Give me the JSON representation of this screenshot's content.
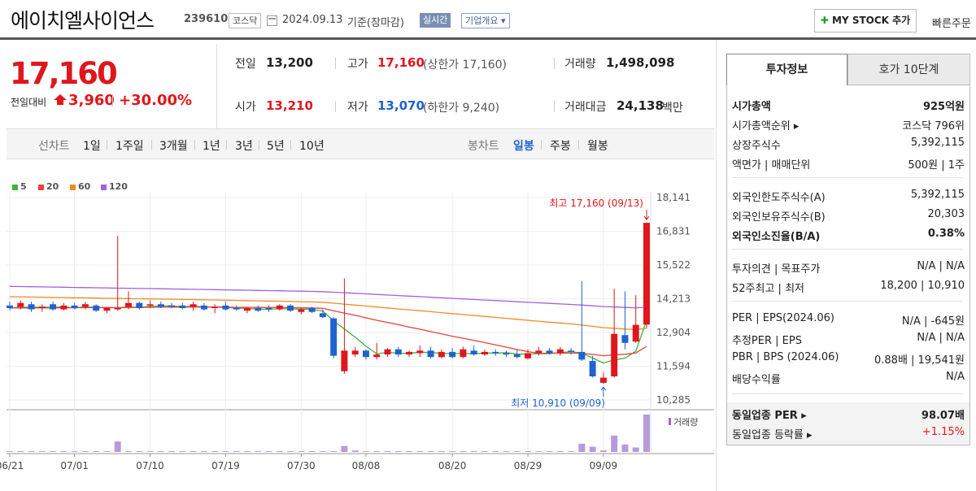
{
  "header": {
    "company_name": "에이치엘사이언스",
    "stock_code": "239610",
    "market": "코스닥",
    "date": "2024.09.13",
    "basis": "기준(장마감)",
    "realtime_label": "실시간",
    "company_info_label": "기업개요 ▾",
    "mystock_label": "MY STOCK 추가",
    "quick_order_label": "빠른주문"
  },
  "price": {
    "current": "17,160",
    "change_label": "전일대비",
    "change_amount": "3,960",
    "change_rate": "+30.00%"
  },
  "quote": {
    "prev_label": "전일",
    "prev_value": "13,200",
    "open_label": "시가",
    "open_value": "13,210",
    "high_label": "고가",
    "high_value": "17,160",
    "upper_limit": "(상한가 17,160)",
    "low_label": "저가",
    "low_value": "13,070",
    "lower_limit": "(하한가 9,240)",
    "volume_label": "거래량",
    "volume_value": "1,498,098",
    "amount_label": "거래대금",
    "amount_value": "24,138",
    "amount_unit": "백만"
  },
  "period_bar": {
    "line_label": "선차트",
    "line_periods": [
      "1일",
      "1주일",
      "3개월",
      "1년",
      "3년",
      "5년",
      "10년"
    ],
    "candle_label": "봉차트",
    "candle_periods": [
      "일봉",
      "주봉",
      "월봉"
    ],
    "active_candle": "일봉"
  },
  "chart_data": {
    "type": "candlestick",
    "legend": [
      {
        "name": "5",
        "color": "#3cb43c"
      },
      {
        "name": "20",
        "color": "#e84040"
      },
      {
        "name": "60",
        "color": "#f08a24"
      },
      {
        "name": "120",
        "color": "#a25ee0"
      }
    ],
    "y_ticks": [
      "18,141",
      "16,831",
      "15,522",
      "14,213",
      "12,904",
      "11,594",
      "10,285"
    ],
    "ylim": [
      10285,
      18141
    ],
    "x_ticks": [
      "06/21",
      "07/01",
      "07/10",
      "07/19",
      "07/30",
      "08/08",
      "08/20",
      "08/29",
      "09/09"
    ],
    "x_tick_index": [
      0,
      6,
      13,
      20,
      27,
      33,
      41,
      48,
      55
    ],
    "max_label": "최고 17,160 (09/13)",
    "min_label": "최저 10,910 (09/09)",
    "volume_label": "거래량",
    "colors": {
      "up": "#e0161d",
      "down": "#1e63d1"
    },
    "candles": [
      {
        "o": 13950,
        "h": 14100,
        "l": 13750,
        "c": 13850
      },
      {
        "o": 13900,
        "h": 14150,
        "l": 13800,
        "c": 14050
      },
      {
        "o": 14000,
        "h": 14100,
        "l": 13700,
        "c": 13800
      },
      {
        "o": 13850,
        "h": 14000,
        "l": 13700,
        "c": 13900
      },
      {
        "o": 14000,
        "h": 14100,
        "l": 13750,
        "c": 13800
      },
      {
        "o": 13800,
        "h": 14050,
        "l": 13750,
        "c": 13950
      },
      {
        "o": 13950,
        "h": 14050,
        "l": 13800,
        "c": 13850
      },
      {
        "o": 13900,
        "h": 14100,
        "l": 13800,
        "c": 14000
      },
      {
        "o": 13950,
        "h": 14000,
        "l": 13700,
        "c": 13750
      },
      {
        "o": 13750,
        "h": 13900,
        "l": 13650,
        "c": 13850
      },
      {
        "o": 13800,
        "h": 16650,
        "l": 13750,
        "c": 13850
      },
      {
        "o": 13900,
        "h": 14500,
        "l": 13800,
        "c": 14050
      },
      {
        "o": 14050,
        "h": 14100,
        "l": 13800,
        "c": 13850
      },
      {
        "o": 13950,
        "h": 14150,
        "l": 13850,
        "c": 14000
      },
      {
        "o": 14000,
        "h": 14100,
        "l": 13850,
        "c": 13900
      },
      {
        "o": 13950,
        "h": 14050,
        "l": 13850,
        "c": 13900
      },
      {
        "o": 13950,
        "h": 14050,
        "l": 13800,
        "c": 13850
      },
      {
        "o": 13900,
        "h": 14100,
        "l": 13750,
        "c": 14000
      },
      {
        "o": 13950,
        "h": 14050,
        "l": 13750,
        "c": 13800
      },
      {
        "o": 13850,
        "h": 14000,
        "l": 13650,
        "c": 13900
      },
      {
        "o": 13950,
        "h": 14100,
        "l": 13750,
        "c": 13800
      },
      {
        "o": 13850,
        "h": 13950,
        "l": 13750,
        "c": 13800
      },
      {
        "o": 13750,
        "h": 13900,
        "l": 13650,
        "c": 13850
      },
      {
        "o": 13850,
        "h": 13950,
        "l": 13700,
        "c": 13750
      },
      {
        "o": 13850,
        "h": 13950,
        "l": 13700,
        "c": 13800
      },
      {
        "o": 13800,
        "h": 14000,
        "l": 13750,
        "c": 13950
      },
      {
        "o": 13950,
        "h": 14000,
        "l": 13700,
        "c": 13750
      },
      {
        "o": 13700,
        "h": 13850,
        "l": 13600,
        "c": 13800
      },
      {
        "o": 13850,
        "h": 13900,
        "l": 13650,
        "c": 13700
      },
      {
        "o": 13650,
        "h": 13800,
        "l": 13450,
        "c": 13500
      },
      {
        "o": 13450,
        "h": 13500,
        "l": 11900,
        "c": 12000
      },
      {
        "o": 11400,
        "h": 15000,
        "l": 11300,
        "c": 12200
      },
      {
        "o": 12050,
        "h": 12350,
        "l": 11950,
        "c": 12200
      },
      {
        "o": 12200,
        "h": 12250,
        "l": 11850,
        "c": 11950
      },
      {
        "o": 11950,
        "h": 12500,
        "l": 11850,
        "c": 12050
      },
      {
        "o": 12050,
        "h": 12300,
        "l": 11950,
        "c": 12250
      },
      {
        "o": 12250,
        "h": 12350,
        "l": 11950,
        "c": 12050
      },
      {
        "o": 12050,
        "h": 12200,
        "l": 11950,
        "c": 12150
      },
      {
        "o": 12100,
        "h": 12400,
        "l": 11950,
        "c": 12200
      },
      {
        "o": 12200,
        "h": 12350,
        "l": 11900,
        "c": 11950
      },
      {
        "o": 11950,
        "h": 12250,
        "l": 11900,
        "c": 12150
      },
      {
        "o": 12150,
        "h": 12300,
        "l": 11900,
        "c": 11950
      },
      {
        "o": 11950,
        "h": 12350,
        "l": 11900,
        "c": 12250
      },
      {
        "o": 12200,
        "h": 12400,
        "l": 12000,
        "c": 12050
      },
      {
        "o": 12050,
        "h": 12250,
        "l": 12000,
        "c": 12150
      },
      {
        "o": 12150,
        "h": 12250,
        "l": 12000,
        "c": 12100
      },
      {
        "o": 12100,
        "h": 12200,
        "l": 11950,
        "c": 12050
      },
      {
        "o": 12050,
        "h": 12250,
        "l": 11900,
        "c": 11950
      },
      {
        "o": 11900,
        "h": 12250,
        "l": 11850,
        "c": 12100
      },
      {
        "o": 12100,
        "h": 12350,
        "l": 12000,
        "c": 12200
      },
      {
        "o": 12200,
        "h": 12300,
        "l": 12050,
        "c": 12100
      },
      {
        "o": 12100,
        "h": 12350,
        "l": 12000,
        "c": 12250
      },
      {
        "o": 12200,
        "h": 12300,
        "l": 12050,
        "c": 12150
      },
      {
        "o": 12150,
        "h": 14900,
        "l": 11800,
        "c": 11850
      },
      {
        "o": 11800,
        "h": 12000,
        "l": 11150,
        "c": 11200
      },
      {
        "o": 10950,
        "h": 11350,
        "l": 10910,
        "c": 11150
      },
      {
        "o": 11200,
        "h": 14600,
        "l": 11150,
        "c": 12850
      },
      {
        "o": 12800,
        "h": 14500,
        "l": 12250,
        "c": 12500
      },
      {
        "o": 12550,
        "h": 14350,
        "l": 12500,
        "c": 13200
      },
      {
        "o": 13210,
        "h": 17160,
        "l": 13070,
        "c": 17160
      }
    ],
    "volumes": [
      1,
      1,
      1,
      1,
      1,
      1,
      1,
      1,
      1,
      1,
      14,
      1,
      1,
      1,
      1,
      1,
      1,
      1,
      1,
      1,
      1,
      1,
      1,
      1,
      1,
      1,
      1,
      1,
      1,
      1,
      1,
      8,
      2,
      1,
      1,
      1,
      1,
      1,
      1,
      1,
      1,
      1,
      1,
      1,
      1,
      1,
      1,
      1,
      1,
      1,
      1,
      1,
      1,
      11,
      7,
      2,
      22,
      10,
      6,
      50
    ],
    "volume_up": [
      false,
      true,
      false,
      true,
      false,
      true,
      false,
      true,
      false,
      true,
      true,
      true,
      false,
      true,
      false,
      false,
      false,
      true,
      false,
      true,
      false,
      false,
      true,
      false,
      false,
      true,
      false,
      true,
      false,
      false,
      false,
      true,
      true,
      false,
      true,
      true,
      false,
      true,
      true,
      false,
      true,
      false,
      true,
      false,
      true,
      false,
      false,
      false,
      true,
      true,
      false,
      true,
      false,
      false,
      false,
      true,
      true,
      false,
      true,
      true
    ]
  },
  "right_panel": {
    "tab_invest": "투자정보",
    "tab_quote": "호가 10단계",
    "rows1": [
      {
        "label": "시가총액",
        "value": "925억원",
        "bold": true
      },
      {
        "label": "시가총액순위 ▸",
        "value": "코스닥 796위"
      },
      {
        "label": "상장주식수",
        "value": "5,392,115"
      },
      {
        "label": "액면가 | 매매단위",
        "value": "500원 | 1주"
      }
    ],
    "rows2": [
      {
        "label": "외국인한도주식수(A)",
        "value": "5,392,115"
      },
      {
        "label": "외국인보유주식수(B)",
        "value": "20,303"
      },
      {
        "label": "외국인소진율(B/A)",
        "value": "0.38%",
        "bold": true
      }
    ],
    "rows3": [
      {
        "label": "투자의견 | 목표주가",
        "value": "N/A | N/A"
      },
      {
        "label": "52주최고 | 최저",
        "value": "18,200 | 10,910"
      }
    ],
    "rows4": [
      {
        "label": "PER | EPS(2024.06)",
        "value": "N/A | -645원"
      },
      {
        "label": "추정PER | EPS",
        "value": "N/A | N/A"
      },
      {
        "label": "PBR | BPS (2024.06)",
        "value": "0.88배 | 19,541원"
      },
      {
        "label": "배당수익률",
        "value": "N/A"
      }
    ],
    "rows5": [
      {
        "label": "동일업종 PER ▸",
        "value": "98.07배",
        "bold": true
      },
      {
        "label": "동일업종 등락률 ▸",
        "value": "+1.15%",
        "red": true
      }
    ]
  }
}
